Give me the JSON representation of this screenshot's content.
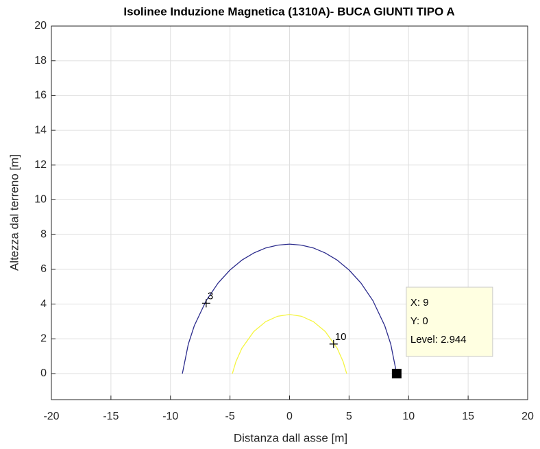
{
  "chart_data": {
    "type": "contour",
    "title": "Isolinee Induzione Magnetica (1310A)- BUCA GIUNTI TIPO A",
    "xlabel": "Distanza dall asse [m]",
    "ylabel": "Altezza dal terreno [m]",
    "xlim": [
      -20,
      20
    ],
    "ylim": [
      -1.5,
      20
    ],
    "xticks": [
      -20,
      -15,
      -10,
      -5,
      0,
      5,
      10,
      15,
      20
    ],
    "yticks": [
      0,
      2,
      4,
      6,
      8,
      10,
      12,
      14,
      16,
      18,
      20
    ],
    "grid": true,
    "series": [
      {
        "level": 3,
        "color": "#2b2b8c",
        "x": [
          -9,
          -8.5,
          -8,
          -7,
          -6,
          -5,
          -4,
          -3,
          -2,
          -1,
          0,
          1,
          2,
          3,
          4,
          5,
          6,
          7,
          8,
          8.5,
          8.95
        ],
        "values": [
          0,
          1.7,
          2.75,
          4.2,
          5.21,
          5.96,
          6.53,
          6.94,
          7.23,
          7.39,
          7.45,
          7.39,
          7.23,
          6.94,
          6.53,
          5.96,
          5.21,
          4.2,
          2.75,
          1.7,
          0.15
        ],
        "label_x": -7,
        "label_y": 4.05
      },
      {
        "level": 10,
        "color": "#f5f542",
        "x": [
          -4.8,
          -4.5,
          -4,
          -3,
          -2,
          -1,
          0,
          1,
          2,
          3,
          4,
          4.5,
          4.8
        ],
        "values": [
          0,
          0.69,
          1.46,
          2.42,
          2.99,
          3.3,
          3.4,
          3.3,
          2.99,
          2.42,
          1.46,
          0.69,
          0
        ],
        "label_x": 3.7,
        "label_y": 1.7
      }
    ],
    "datatip": {
      "x": 9,
      "y": 0,
      "lines": [
        "X: 9",
        "Y: 0",
        "Level: 2.944"
      ]
    }
  }
}
